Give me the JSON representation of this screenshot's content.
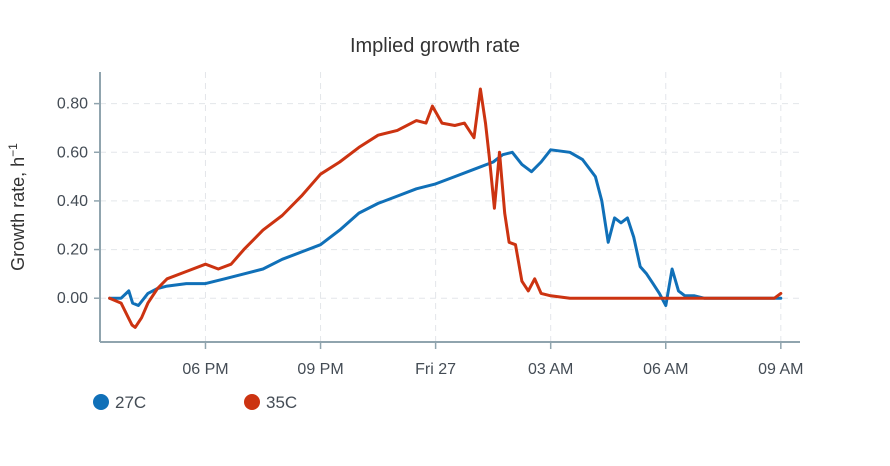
{
  "chart_data": {
    "type": "line",
    "title": "Implied growth rate",
    "xlabel": "",
    "ylabel": "Growth rate, h",
    "ylabel_superscript": "−1",
    "x_tick_labels": [
      "06 PM",
      "09 PM",
      "Fri 27",
      "03 AM",
      "06 AM",
      "09 AM"
    ],
    "x_ticks": [
      "2024-09-26 18:00",
      "2024-09-26 21:00",
      "2024-09-27 00:00",
      "2024-09-27 03:00",
      "2024-09-27 06:00",
      "2024-09-27 09:00"
    ],
    "xlim": [
      "2024-09-26 15:15",
      "2024-09-27 09:30"
    ],
    "y_tick_labels": [
      "0.00",
      "0.20",
      "0.40",
      "0.60",
      "0.80"
    ],
    "ylim": [
      -0.18,
      0.93
    ],
    "grid": true,
    "legend_position": "bottom-left",
    "series": [
      {
        "name": "27C",
        "color": "#1070b8",
        "x": [
          "2024-09-26 15:30",
          "2024-09-26 15:48",
          "2024-09-26 16:00",
          "2024-09-26 16:06",
          "2024-09-26 16:15",
          "2024-09-26 16:30",
          "2024-09-26 16:45",
          "2024-09-26 17:00",
          "2024-09-26 17:30",
          "2024-09-26 18:00",
          "2024-09-26 18:30",
          "2024-09-26 19:00",
          "2024-09-26 19:30",
          "2024-09-26 20:00",
          "2024-09-26 20:30",
          "2024-09-26 21:00",
          "2024-09-26 21:30",
          "2024-09-26 22:00",
          "2024-09-26 22:30",
          "2024-09-26 23:00",
          "2024-09-26 23:30",
          "2024-09-27 00:00",
          "2024-09-27 00:30",
          "2024-09-27 01:00",
          "2024-09-27 01:30",
          "2024-09-27 01:45",
          "2024-09-27 02:00",
          "2024-09-27 02:15",
          "2024-09-27 02:30",
          "2024-09-27 02:45",
          "2024-09-27 03:00",
          "2024-09-27 03:30",
          "2024-09-27 03:50",
          "2024-09-27 04:10",
          "2024-09-27 04:20",
          "2024-09-27 04:30",
          "2024-09-27 04:40",
          "2024-09-27 04:50",
          "2024-09-27 05:00",
          "2024-09-27 05:10",
          "2024-09-27 05:20",
          "2024-09-27 05:30",
          "2024-09-27 05:40",
          "2024-09-27 05:50",
          "2024-09-27 06:00",
          "2024-09-27 06:10",
          "2024-09-27 06:20",
          "2024-09-27 06:30",
          "2024-09-27 06:45",
          "2024-09-27 07:00",
          "2024-09-27 07:30",
          "2024-09-27 08:00",
          "2024-09-27 08:30",
          "2024-09-27 09:00"
        ],
        "y": [
          0.0,
          0.0,
          0.03,
          -0.02,
          -0.03,
          0.02,
          0.04,
          0.05,
          0.06,
          0.06,
          0.08,
          0.1,
          0.12,
          0.16,
          0.19,
          0.22,
          0.28,
          0.35,
          0.39,
          0.42,
          0.45,
          0.47,
          0.5,
          0.53,
          0.56,
          0.59,
          0.6,
          0.55,
          0.52,
          0.56,
          0.61,
          0.6,
          0.57,
          0.5,
          0.4,
          0.23,
          0.33,
          0.31,
          0.33,
          0.25,
          0.13,
          0.1,
          0.06,
          0.02,
          -0.03,
          0.12,
          0.03,
          0.01,
          0.01,
          0.0,
          0.0,
          0.0,
          0.0,
          0.0
        ]
      },
      {
        "name": "35C",
        "color": "#cc3311",
        "x": [
          "2024-09-26 15:30",
          "2024-09-26 15:48",
          "2024-09-26 16:05",
          "2024-09-26 16:10",
          "2024-09-26 16:20",
          "2024-09-26 16:30",
          "2024-09-26 16:45",
          "2024-09-26 17:00",
          "2024-09-26 17:30",
          "2024-09-26 18:00",
          "2024-09-26 18:20",
          "2024-09-26 18:40",
          "2024-09-26 19:00",
          "2024-09-26 19:30",
          "2024-09-26 20:00",
          "2024-09-26 20:30",
          "2024-09-26 21:00",
          "2024-09-26 21:30",
          "2024-09-26 22:00",
          "2024-09-26 22:30",
          "2024-09-26 23:00",
          "2024-09-26 23:30",
          "2024-09-26 23:45",
          "2024-09-26 23:55",
          "2024-09-27 00:10",
          "2024-09-27 00:30",
          "2024-09-27 00:45",
          "2024-09-27 01:00",
          "2024-09-27 01:10",
          "2024-09-27 01:18",
          "2024-09-27 01:24",
          "2024-09-27 01:32",
          "2024-09-27 01:40",
          "2024-09-27 01:48",
          "2024-09-27 01:55",
          "2024-09-27 02:05",
          "2024-09-27 02:15",
          "2024-09-27 02:25",
          "2024-09-27 02:35",
          "2024-09-27 02:45",
          "2024-09-27 03:00",
          "2024-09-27 03:30",
          "2024-09-27 04:00",
          "2024-09-27 05:00",
          "2024-09-27 06:00",
          "2024-09-27 07:00",
          "2024-09-27 08:00",
          "2024-09-27 08:50",
          "2024-09-27 09:00"
        ],
        "y": [
          0.0,
          -0.02,
          -0.11,
          -0.12,
          -0.08,
          -0.02,
          0.04,
          0.08,
          0.11,
          0.14,
          0.12,
          0.14,
          0.2,
          0.28,
          0.34,
          0.42,
          0.51,
          0.56,
          0.62,
          0.67,
          0.69,
          0.73,
          0.72,
          0.79,
          0.72,
          0.71,
          0.72,
          0.66,
          0.86,
          0.72,
          0.58,
          0.37,
          0.6,
          0.35,
          0.23,
          0.22,
          0.07,
          0.03,
          0.08,
          0.02,
          0.01,
          0.0,
          0.0,
          0.0,
          0.0,
          0.0,
          0.0,
          0.0,
          0.02
        ]
      }
    ]
  }
}
